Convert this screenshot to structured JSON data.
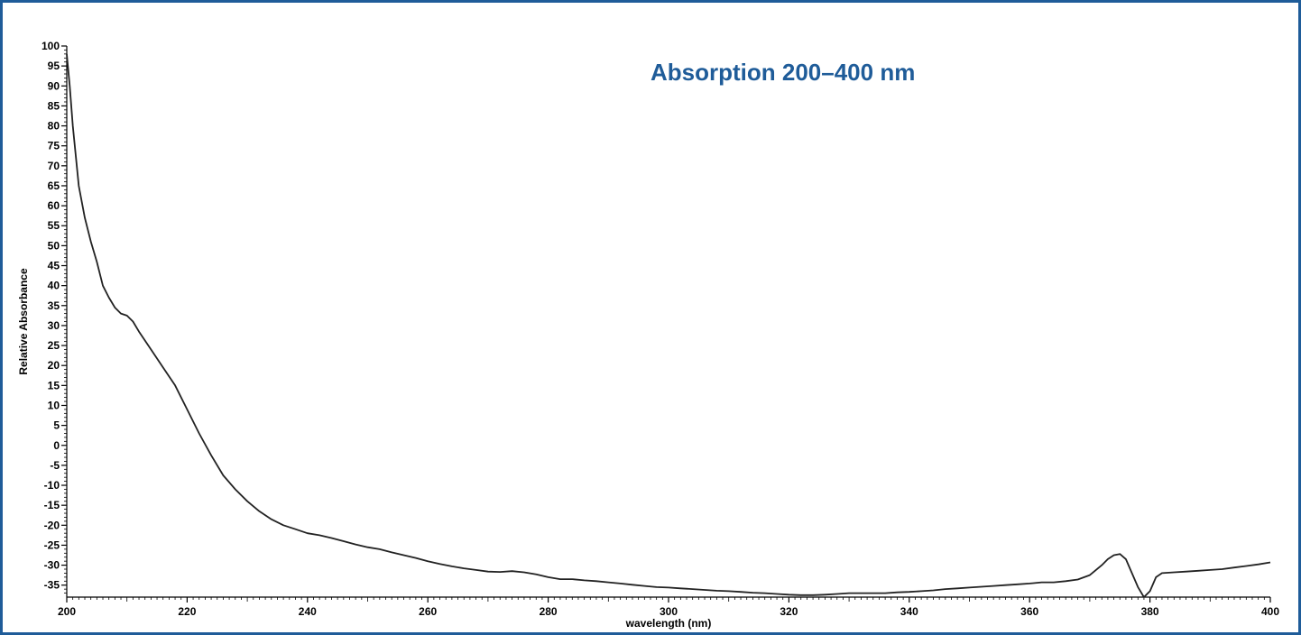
{
  "chart_data": {
    "type": "line",
    "title": "Absorption 200–400 nm",
    "xlabel": "wavelength (nm)",
    "ylabel": "Relative Absorbance",
    "xlim": [
      200,
      400
    ],
    "ylim": [
      -38,
      100
    ],
    "x_ticks": [
      200,
      220,
      240,
      260,
      280,
      300,
      320,
      340,
      360,
      380,
      400
    ],
    "y_ticks": [
      100,
      95,
      90,
      85,
      80,
      75,
      70,
      65,
      60,
      55,
      50,
      45,
      40,
      35,
      30,
      25,
      20,
      15,
      10,
      5,
      0,
      -5,
      -10,
      -15,
      -20,
      -25,
      -30,
      -35
    ],
    "grid": false,
    "legend": "none",
    "colors": {
      "line": "#222222",
      "frame": "#1f5c99",
      "title": "#1f5c99"
    },
    "series": [
      {
        "x": [
          200,
          200.5,
          201,
          202,
          203,
          204,
          205,
          206,
          207,
          208,
          209,
          210,
          211,
          212,
          214,
          216,
          218,
          220,
          222,
          224,
          226,
          228,
          230,
          232,
          234,
          236,
          238,
          240,
          242,
          244,
          246,
          248,
          250,
          252,
          254,
          256,
          258,
          260,
          262,
          264,
          266,
          268,
          270,
          272,
          274,
          276,
          278,
          280,
          282,
          284,
          286,
          288,
          290,
          292,
          294,
          296,
          298,
          300,
          302,
          304,
          306,
          308,
          310,
          312,
          314,
          316,
          318,
          320,
          322,
          324,
          326,
          328,
          330,
          332,
          334,
          336,
          338,
          340,
          342,
          344,
          346,
          348,
          350,
          352,
          354,
          356,
          358,
          360,
          362,
          364,
          366,
          368,
          370,
          372,
          373,
          374,
          375,
          376,
          377,
          378,
          379,
          380,
          381,
          382,
          384,
          386,
          388,
          390,
          392,
          394,
          396,
          398,
          400
        ],
        "y": [
          98,
          90,
          80,
          65,
          57,
          51,
          46,
          40,
          37,
          34.5,
          33,
          32.5,
          31,
          28.5,
          24,
          19.5,
          15,
          9,
          3,
          -2.5,
          -7.5,
          -11,
          -14,
          -16.5,
          -18.5,
          -20,
          -21,
          -22,
          -22.5,
          -23.2,
          -24,
          -24.8,
          -25.5,
          -26,
          -26.8,
          -27.5,
          -28.2,
          -29,
          -29.7,
          -30.3,
          -30.8,
          -31.2,
          -31.6,
          -31.7,
          -31.5,
          -31.8,
          -32.3,
          -33,
          -33.5,
          -33.5,
          -33.8,
          -34,
          -34.3,
          -34.6,
          -34.9,
          -35.2,
          -35.5,
          -35.6,
          -35.8,
          -36,
          -36.2,
          -36.4,
          -36.5,
          -36.7,
          -36.9,
          -37,
          -37.2,
          -37.4,
          -37.5,
          -37.5,
          -37.4,
          -37.2,
          -37,
          -37,
          -37,
          -37,
          -36.8,
          -36.7,
          -36.5,
          -36.3,
          -36,
          -35.8,
          -35.6,
          -35.4,
          -35.2,
          -35,
          -34.8,
          -34.6,
          -34.3,
          -34.3,
          -34,
          -33.6,
          -32.5,
          -30,
          -28.5,
          -27.5,
          -27.2,
          -28.5,
          -32,
          -35.5,
          -38,
          -36.5,
          -33,
          -32,
          -31.8,
          -31.6,
          -31.4,
          -31.2,
          -31,
          -30.6,
          -30.2,
          -29.8,
          -29.3
        ]
      }
    ]
  }
}
